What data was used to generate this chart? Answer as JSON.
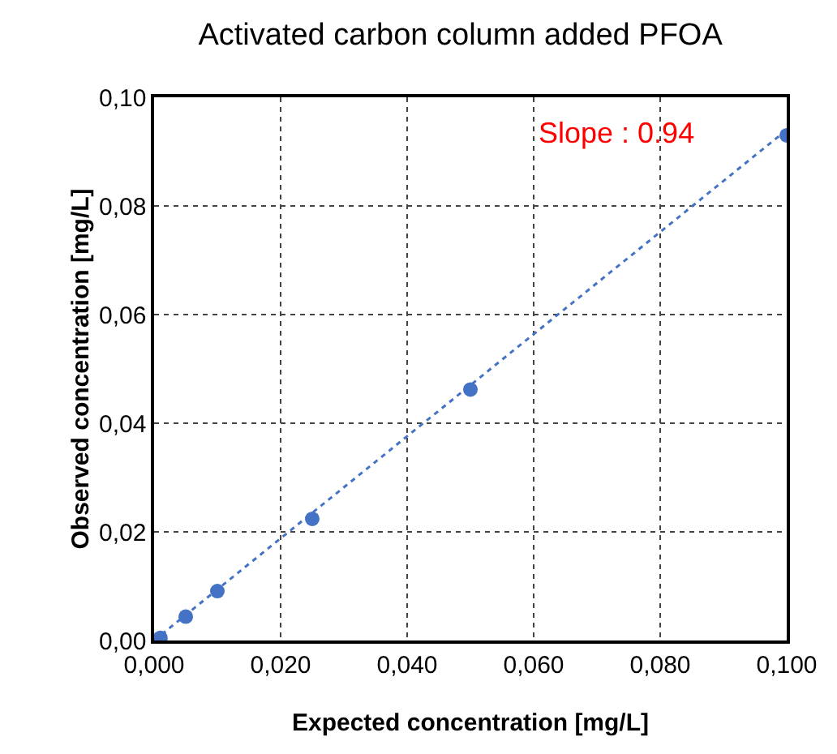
{
  "chart_data": {
    "type": "scatter",
    "title": "Activated carbon column added PFOA",
    "xlabel": "Expected concentration [mg/L]",
    "ylabel": "Observed concentration [mg/L]",
    "series": [
      {
        "color": "#4472c4",
        "x": [
          0.001,
          0.005,
          0.01,
          0.025,
          0.05,
          0.1
        ],
        "values": [
          0.0005,
          0.0044,
          0.0091,
          0.0224,
          0.0462,
          0.093
        ],
        "marker": "circle"
      },
      {
        "type": "line",
        "color": "#4472c4",
        "x": [
          0,
          0.1
        ],
        "values": [
          0,
          0.094
        ],
        "line_style": "dotted",
        "marker": "none"
      }
    ],
    "annotations": [
      "Slope : 0.94"
    ],
    "xlim": [
      0,
      0.1
    ],
    "ylim": [
      0,
      0.1
    ],
    "xticks": [
      {
        "value": 0,
        "label": "0,000"
      },
      {
        "value": 0.02,
        "label": "0,020"
      },
      {
        "value": 0.04,
        "label": "0,040"
      },
      {
        "value": 0.06,
        "label": "0,060"
      },
      {
        "value": 0.08,
        "label": "0,080"
      },
      {
        "value": 0.1,
        "label": "0,100"
      }
    ],
    "yticks": [
      {
        "value": 0,
        "label": "0,00"
      },
      {
        "value": 0.02,
        "label": "0,02"
      },
      {
        "value": 0.04,
        "label": "0,04"
      },
      {
        "value": 0.06,
        "label": "0,06"
      },
      {
        "value": 0.08,
        "label": "0,08"
      },
      {
        "value": 0.1,
        "label": "0,10"
      }
    ],
    "grid": true
  }
}
